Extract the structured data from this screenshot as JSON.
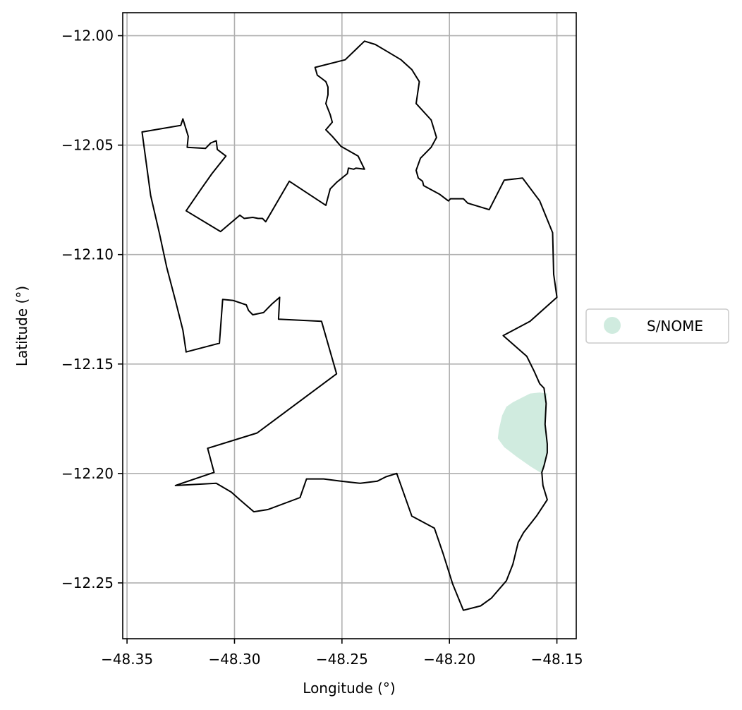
{
  "chart_data": {
    "type": "map",
    "xlabel": "Longitude (°)",
    "ylabel": "Latitude (°)",
    "xlim": [
      -48.352,
      -48.141
    ],
    "ylim": [
      -12.2755,
      -11.9895
    ],
    "grid": true,
    "x_ticks": [
      -48.35,
      -48.3,
      -48.25,
      -48.2,
      -48.15
    ],
    "y_ticks": [
      -12.0,
      -12.05,
      -12.1,
      -12.15,
      -12.2,
      -12.25
    ],
    "x_tick_labels": [
      "−48.35",
      "−48.30",
      "−48.25",
      "−48.20",
      "−48.15"
    ],
    "y_tick_labels": [
      "−12.00",
      "−12.05",
      "−12.10",
      "−12.15",
      "−12.20",
      "−12.25"
    ],
    "legend": {
      "placement": "center-right-outside",
      "entries": [
        {
          "label": "S/NOME",
          "color": "#d0ebdf"
        }
      ]
    },
    "boundary_color": "#000000",
    "boundary": [
      [
        -48.343,
        -12.044
      ],
      [
        -48.325,
        -12.041
      ],
      [
        -48.324,
        -12.038
      ],
      [
        -48.3215,
        -12.046
      ],
      [
        -48.322,
        -12.051
      ],
      [
        -48.3135,
        -12.0515
      ],
      [
        -48.311,
        -12.049
      ],
      [
        -48.3085,
        -12.048
      ],
      [
        -48.308,
        -12.052
      ],
      [
        -48.304,
        -12.055
      ],
      [
        -48.3105,
        -12.063
      ],
      [
        -48.3155,
        -12.07
      ],
      [
        -48.3225,
        -12.08
      ],
      [
        -48.3065,
        -12.0895
      ],
      [
        -48.2975,
        -12.082
      ],
      [
        -48.2955,
        -12.0835
      ],
      [
        -48.2915,
        -12.083
      ],
      [
        -48.289,
        -12.0835
      ],
      [
        -48.287,
        -12.0835
      ],
      [
        -48.2855,
        -12.085
      ],
      [
        -48.2745,
        -12.0665
      ],
      [
        -48.2575,
        -12.0775
      ],
      [
        -48.2555,
        -12.07
      ],
      [
        -48.2525,
        -12.067
      ],
      [
        -48.2475,
        -12.063
      ],
      [
        -48.247,
        -12.0605
      ],
      [
        -48.2445,
        -12.061
      ],
      [
        -48.2435,
        -12.0605
      ],
      [
        -48.2395,
        -12.061
      ],
      [
        -48.2425,
        -12.055
      ],
      [
        -48.2505,
        -12.0505
      ],
      [
        -48.2545,
        -12.046
      ],
      [
        -48.2575,
        -12.043
      ],
      [
        -48.2545,
        -12.0395
      ],
      [
        -48.2555,
        -12.036
      ],
      [
        -48.2575,
        -12.031
      ],
      [
        -48.2565,
        -12.027
      ],
      [
        -48.2565,
        -12.0235
      ],
      [
        -48.2575,
        -12.021
      ],
      [
        -48.2595,
        -12.0195
      ],
      [
        -48.2615,
        -12.018
      ],
      [
        -48.2625,
        -12.0145
      ],
      [
        -48.2485,
        -12.011
      ],
      [
        -48.2395,
        -12.0025
      ],
      [
        -48.2345,
        -12.004
      ],
      [
        -48.2285,
        -12.0075
      ],
      [
        -48.2225,
        -12.011
      ],
      [
        -48.2175,
        -12.0155
      ],
      [
        -48.214,
        -12.021
      ],
      [
        -48.2155,
        -12.031
      ],
      [
        -48.2085,
        -12.0385
      ],
      [
        -48.206,
        -12.0465
      ],
      [
        -48.2085,
        -12.051
      ],
      [
        -48.2135,
        -12.056
      ],
      [
        -48.2155,
        -12.0615
      ],
      [
        -48.2145,
        -12.065
      ],
      [
        -48.2125,
        -12.0665
      ],
      [
        -48.212,
        -12.0685
      ],
      [
        -48.2045,
        -12.0725
      ],
      [
        -48.2005,
        -12.0755
      ],
      [
        -48.1995,
        -12.0745
      ],
      [
        -48.1935,
        -12.0745
      ],
      [
        -48.1915,
        -12.0765
      ],
      [
        -48.1815,
        -12.0795
      ],
      [
        -48.1745,
        -12.066
      ],
      [
        -48.166,
        -12.065
      ],
      [
        -48.158,
        -12.0755
      ],
      [
        -48.152,
        -12.09
      ],
      [
        -48.1515,
        -12.109
      ],
      [
        -48.15,
        -12.1195
      ],
      [
        -48.1625,
        -12.1305
      ],
      [
        -48.175,
        -12.137
      ],
      [
        -48.164,
        -12.1465
      ],
      [
        -48.1605,
        -12.1535
      ],
      [
        -48.158,
        -12.159
      ],
      [
        -48.156,
        -12.161
      ],
      [
        -48.155,
        -12.168
      ],
      [
        -48.1555,
        -12.1775
      ],
      [
        -48.1545,
        -12.1865
      ],
      [
        -48.1545,
        -12.1905
      ],
      [
        -48.156,
        -12.1965
      ],
      [
        -48.157,
        -12.1995
      ],
      [
        -48.1565,
        -12.2055
      ],
      [
        -48.1545,
        -12.212
      ],
      [
        -48.1595,
        -12.2195
      ],
      [
        -48.1655,
        -12.227
      ],
      [
        -48.168,
        -12.2315
      ],
      [
        -48.1705,
        -12.2415
      ],
      [
        -48.1735,
        -12.249
      ],
      [
        -48.1805,
        -12.257
      ],
      [
        -48.1855,
        -12.2605
      ],
      [
        -48.1935,
        -12.2625
      ],
      [
        -48.1985,
        -12.2505
      ],
      [
        -48.203,
        -12.2365
      ],
      [
        -48.207,
        -12.225
      ],
      [
        -48.2175,
        -12.2195
      ],
      [
        -48.2245,
        -12.2
      ],
      [
        -48.2295,
        -12.2015
      ],
      [
        -48.2335,
        -12.2035
      ],
      [
        -48.2415,
        -12.2045
      ],
      [
        -48.2505,
        -12.2035
      ],
      [
        -48.2585,
        -12.2025
      ],
      [
        -48.2665,
        -12.2025
      ],
      [
        -48.2695,
        -12.211
      ],
      [
        -48.2845,
        -12.2165
      ],
      [
        -48.291,
        -12.2175
      ],
      [
        -48.2975,
        -12.212
      ],
      [
        -48.3015,
        -12.2085
      ],
      [
        -48.3085,
        -12.2045
      ],
      [
        -48.3275,
        -12.2055
      ],
      [
        -48.3095,
        -12.1995
      ],
      [
        -48.3125,
        -12.1885
      ],
      [
        -48.2895,
        -12.1815
      ],
      [
        -48.2525,
        -12.1545
      ],
      [
        -48.2595,
        -12.1305
      ],
      [
        -48.2795,
        -12.1295
      ],
      [
        -48.279,
        -12.1195
      ],
      [
        -48.2825,
        -12.1225
      ],
      [
        -48.2865,
        -12.1265
      ],
      [
        -48.2915,
        -12.1275
      ],
      [
        -48.2935,
        -12.1255
      ],
      [
        -48.2945,
        -12.123
      ],
      [
        -48.3005,
        -12.121
      ],
      [
        -48.3055,
        -12.1205
      ],
      [
        -48.307,
        -12.1405
      ],
      [
        -48.3225,
        -12.1445
      ],
      [
        -48.324,
        -12.1345
      ],
      [
        -48.3275,
        -12.121
      ],
      [
        -48.3315,
        -12.106
      ],
      [
        -48.335,
        -12.09
      ],
      [
        -48.339,
        -12.073
      ],
      [
        -48.343,
        -12.044
      ]
    ],
    "regions": [
      {
        "name": "S/NOME",
        "color": "#d0ebdf",
        "polygon": [
          [
            -48.1545,
            -12.1635
          ],
          [
            -48.1555,
            -12.1685
          ],
          [
            -48.1555,
            -12.177
          ],
          [
            -48.1545,
            -12.1865
          ],
          [
            -48.1545,
            -12.1905
          ],
          [
            -48.156,
            -12.1965
          ],
          [
            -48.157,
            -12.2
          ],
          [
            -48.162,
            -12.197
          ],
          [
            -48.1685,
            -12.1925
          ],
          [
            -48.1745,
            -12.188
          ],
          [
            -48.1775,
            -12.184
          ],
          [
            -48.177,
            -12.18
          ],
          [
            -48.1755,
            -12.1735
          ],
          [
            -48.1735,
            -12.1695
          ],
          [
            -48.1705,
            -12.1675
          ],
          [
            -48.1665,
            -12.1655
          ],
          [
            -48.1625,
            -12.1635
          ],
          [
            -48.158,
            -12.163
          ],
          [
            -48.1545,
            -12.1635
          ]
        ]
      }
    ]
  }
}
